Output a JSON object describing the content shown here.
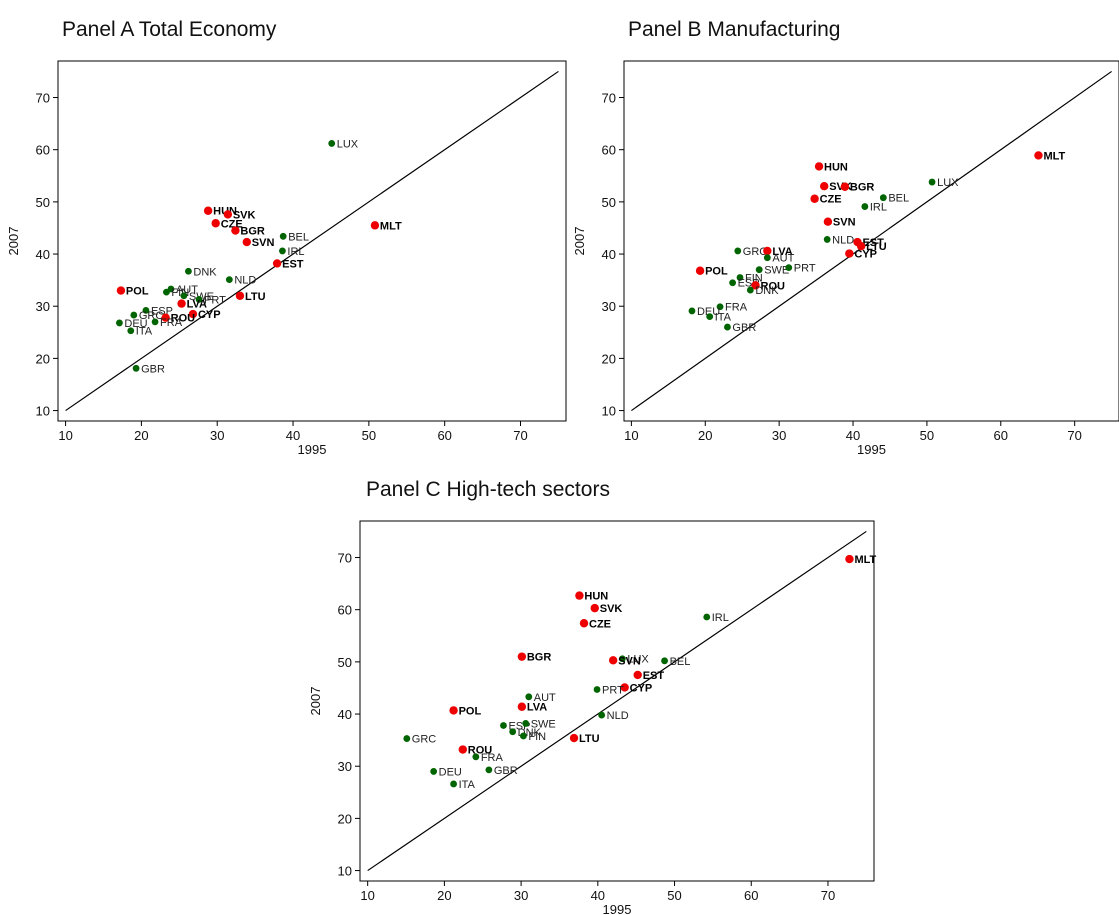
{
  "colors": {
    "new_member": "#ee0000",
    "old_member": "#006400",
    "line": "#000000"
  },
  "chart_data": [
    {
      "type": "scatter",
      "title": "Panel A Total Economy",
      "xlabel": "1995",
      "ylabel": "2007",
      "xlim": [
        9,
        76
      ],
      "ylim": [
        8,
        77
      ],
      "xticks": [
        10,
        20,
        30,
        40,
        50,
        60,
        70
      ],
      "yticks": [
        10,
        20,
        30,
        40,
        50,
        60,
        70
      ],
      "diagonal": [
        10,
        75
      ],
      "points": [
        {
          "label": "LUX",
          "x": 45.1,
          "y": 61.2,
          "group": "old"
        },
        {
          "label": "MLT",
          "x": 50.8,
          "y": 45.5,
          "group": "new"
        },
        {
          "label": "HUN",
          "x": 28.8,
          "y": 48.3,
          "group": "new"
        },
        {
          "label": "SVK",
          "x": 31.4,
          "y": 47.6,
          "group": "new"
        },
        {
          "label": "CZE",
          "x": 29.8,
          "y": 45.9,
          "group": "new"
        },
        {
          "label": "BGR",
          "x": 32.4,
          "y": 44.5,
          "group": "new"
        },
        {
          "label": "SVN",
          "x": 33.9,
          "y": 42.3,
          "group": "new"
        },
        {
          "label": "BEL",
          "x": 38.7,
          "y": 43.4,
          "group": "old"
        },
        {
          "label": "IRL",
          "x": 38.6,
          "y": 40.6,
          "group": "old"
        },
        {
          "label": "EST",
          "x": 37.9,
          "y": 38.2,
          "group": "new"
        },
        {
          "label": "DNK",
          "x": 26.2,
          "y": 36.7,
          "group": "old"
        },
        {
          "label": "NLD",
          "x": 31.6,
          "y": 35.1,
          "group": "old"
        },
        {
          "label": "POL",
          "x": 17.3,
          "y": 33.0,
          "group": "new"
        },
        {
          "label": "AUT",
          "x": 23.9,
          "y": 33.3,
          "group": "old"
        },
        {
          "label": "FIN",
          "x": 23.3,
          "y": 32.7,
          "group": "old"
        },
        {
          "label": "SWE",
          "x": 25.6,
          "y": 32.0,
          "group": "old"
        },
        {
          "label": "PRT",
          "x": 27.6,
          "y": 31.3,
          "group": "old"
        },
        {
          "label": "LTU",
          "x": 33.0,
          "y": 32.0,
          "group": "new"
        },
        {
          "label": "LVA",
          "x": 25.3,
          "y": 30.5,
          "group": "new"
        },
        {
          "label": "ESP",
          "x": 20.6,
          "y": 29.2,
          "group": "old"
        },
        {
          "label": "GRC",
          "x": 19.0,
          "y": 28.3,
          "group": "old"
        },
        {
          "label": "CYP",
          "x": 26.8,
          "y": 28.5,
          "group": "new"
        },
        {
          "label": "ROU",
          "x": 23.2,
          "y": 27.8,
          "group": "new"
        },
        {
          "label": "FRA",
          "x": 21.8,
          "y": 27.0,
          "group": "old"
        },
        {
          "label": "DEU",
          "x": 17.1,
          "y": 26.8,
          "group": "old"
        },
        {
          "label": "ITA",
          "x": 18.6,
          "y": 25.3,
          "group": "old"
        },
        {
          "label": "GBR",
          "x": 19.3,
          "y": 18.1,
          "group": "old"
        }
      ]
    },
    {
      "type": "scatter",
      "title": "Panel B Manufacturing",
      "xlabel": "1995",
      "ylabel": "2007",
      "xlim": [
        9,
        76
      ],
      "ylim": [
        8,
        77
      ],
      "xticks": [
        10,
        20,
        30,
        40,
        50,
        60,
        70
      ],
      "yticks": [
        10,
        20,
        30,
        40,
        50,
        60,
        70
      ],
      "diagonal": [
        10,
        75
      ],
      "points": [
        {
          "label": "MLT",
          "x": 65.1,
          "y": 58.9,
          "group": "new"
        },
        {
          "label": "HUN",
          "x": 35.4,
          "y": 56.8,
          "group": "new"
        },
        {
          "label": "SVK",
          "x": 36.1,
          "y": 53.0,
          "group": "new"
        },
        {
          "label": "BGR",
          "x": 38.9,
          "y": 52.9,
          "group": "new"
        },
        {
          "label": "LUX",
          "x": 50.7,
          "y": 53.8,
          "group": "old"
        },
        {
          "label": "CZE",
          "x": 34.8,
          "y": 50.6,
          "group": "new"
        },
        {
          "label": "BEL",
          "x": 44.1,
          "y": 50.8,
          "group": "old"
        },
        {
          "label": "IRL",
          "x": 41.6,
          "y": 49.1,
          "group": "old"
        },
        {
          "label": "SVN",
          "x": 36.6,
          "y": 46.2,
          "group": "new"
        },
        {
          "label": "NLD",
          "x": 36.5,
          "y": 42.8,
          "group": "old"
        },
        {
          "label": "EST",
          "x": 40.6,
          "y": 42.3,
          "group": "new"
        },
        {
          "label": "LTU",
          "x": 41.1,
          "y": 41.5,
          "group": "new"
        },
        {
          "label": "CYP",
          "x": 39.5,
          "y": 40.1,
          "group": "new"
        },
        {
          "label": "GRC",
          "x": 24.4,
          "y": 40.6,
          "group": "old"
        },
        {
          "label": "LVA",
          "x": 28.4,
          "y": 40.6,
          "group": "new"
        },
        {
          "label": "AUT",
          "x": 28.4,
          "y": 39.3,
          "group": "old"
        },
        {
          "label": "POL",
          "x": 19.3,
          "y": 36.8,
          "group": "new"
        },
        {
          "label": "SWE",
          "x": 27.3,
          "y": 37.0,
          "group": "old"
        },
        {
          "label": "PRT",
          "x": 31.3,
          "y": 37.4,
          "group": "old"
        },
        {
          "label": "FIN",
          "x": 24.7,
          "y": 35.5,
          "group": "old"
        },
        {
          "label": "ESP",
          "x": 23.7,
          "y": 34.5,
          "group": "old"
        },
        {
          "label": "ROU",
          "x": 26.8,
          "y": 34.0,
          "group": "new"
        },
        {
          "label": "DNK",
          "x": 26.1,
          "y": 33.1,
          "group": "old"
        },
        {
          "label": "FRA",
          "x": 22.0,
          "y": 29.9,
          "group": "old"
        },
        {
          "label": "DEU",
          "x": 18.2,
          "y": 29.1,
          "group": "old"
        },
        {
          "label": "ITA",
          "x": 20.6,
          "y": 28.0,
          "group": "old"
        },
        {
          "label": "GBR",
          "x": 23.0,
          "y": 26.0,
          "group": "old"
        }
      ]
    },
    {
      "type": "scatter",
      "title": "Panel C High-tech sectors",
      "xlabel": "1995",
      "ylabel": "2007",
      "xlim": [
        9,
        76
      ],
      "ylim": [
        8,
        77
      ],
      "xticks": [
        10,
        20,
        30,
        40,
        50,
        60,
        70
      ],
      "yticks": [
        10,
        20,
        30,
        40,
        50,
        60,
        70
      ],
      "diagonal": [
        10,
        75
      ],
      "points": [
        {
          "label": "MLT",
          "x": 72.8,
          "y": 69.7,
          "group": "new"
        },
        {
          "label": "HUN",
          "x": 37.6,
          "y": 62.7,
          "group": "new"
        },
        {
          "label": "SVK",
          "x": 39.6,
          "y": 60.3,
          "group": "new"
        },
        {
          "label": "IRL",
          "x": 54.2,
          "y": 58.6,
          "group": "old"
        },
        {
          "label": "CZE",
          "x": 38.2,
          "y": 57.4,
          "group": "new"
        },
        {
          "label": "BGR",
          "x": 30.1,
          "y": 51.0,
          "group": "new"
        },
        {
          "label": "LUX",
          "x": 43.2,
          "y": 50.6,
          "group": "old"
        },
        {
          "label": "SVN",
          "x": 42.0,
          "y": 50.3,
          "group": "new"
        },
        {
          "label": "BEL",
          "x": 48.7,
          "y": 50.2,
          "group": "old"
        },
        {
          "label": "EST",
          "x": 45.2,
          "y": 47.5,
          "group": "new"
        },
        {
          "label": "CYP",
          "x": 43.5,
          "y": 45.1,
          "group": "new"
        },
        {
          "label": "PRT",
          "x": 39.9,
          "y": 44.7,
          "group": "old"
        },
        {
          "label": "AUT",
          "x": 31.0,
          "y": 43.3,
          "group": "old"
        },
        {
          "label": "POL",
          "x": 21.2,
          "y": 40.7,
          "group": "new"
        },
        {
          "label": "LVA",
          "x": 30.1,
          "y": 41.4,
          "group": "new"
        },
        {
          "label": "NLD",
          "x": 40.5,
          "y": 39.8,
          "group": "old"
        },
        {
          "label": "ESP",
          "x": 27.7,
          "y": 37.8,
          "group": "old"
        },
        {
          "label": "SWE",
          "x": 30.6,
          "y": 38.2,
          "group": "old"
        },
        {
          "label": "DNK",
          "x": 28.9,
          "y": 36.6,
          "group": "old"
        },
        {
          "label": "FIN",
          "x": 30.3,
          "y": 35.8,
          "group": "old"
        },
        {
          "label": "LTU",
          "x": 36.9,
          "y": 35.4,
          "group": "new"
        },
        {
          "label": "GRC",
          "x": 15.1,
          "y": 35.3,
          "group": "old"
        },
        {
          "label": "ROU",
          "x": 22.4,
          "y": 33.2,
          "group": "new"
        },
        {
          "label": "FRA",
          "x": 24.1,
          "y": 31.8,
          "group": "old"
        },
        {
          "label": "GBR",
          "x": 25.8,
          "y": 29.3,
          "group": "old"
        },
        {
          "label": "DEU",
          "x": 18.6,
          "y": 29.0,
          "group": "old"
        },
        {
          "label": "ITA",
          "x": 21.2,
          "y": 26.6,
          "group": "old"
        }
      ]
    }
  ]
}
